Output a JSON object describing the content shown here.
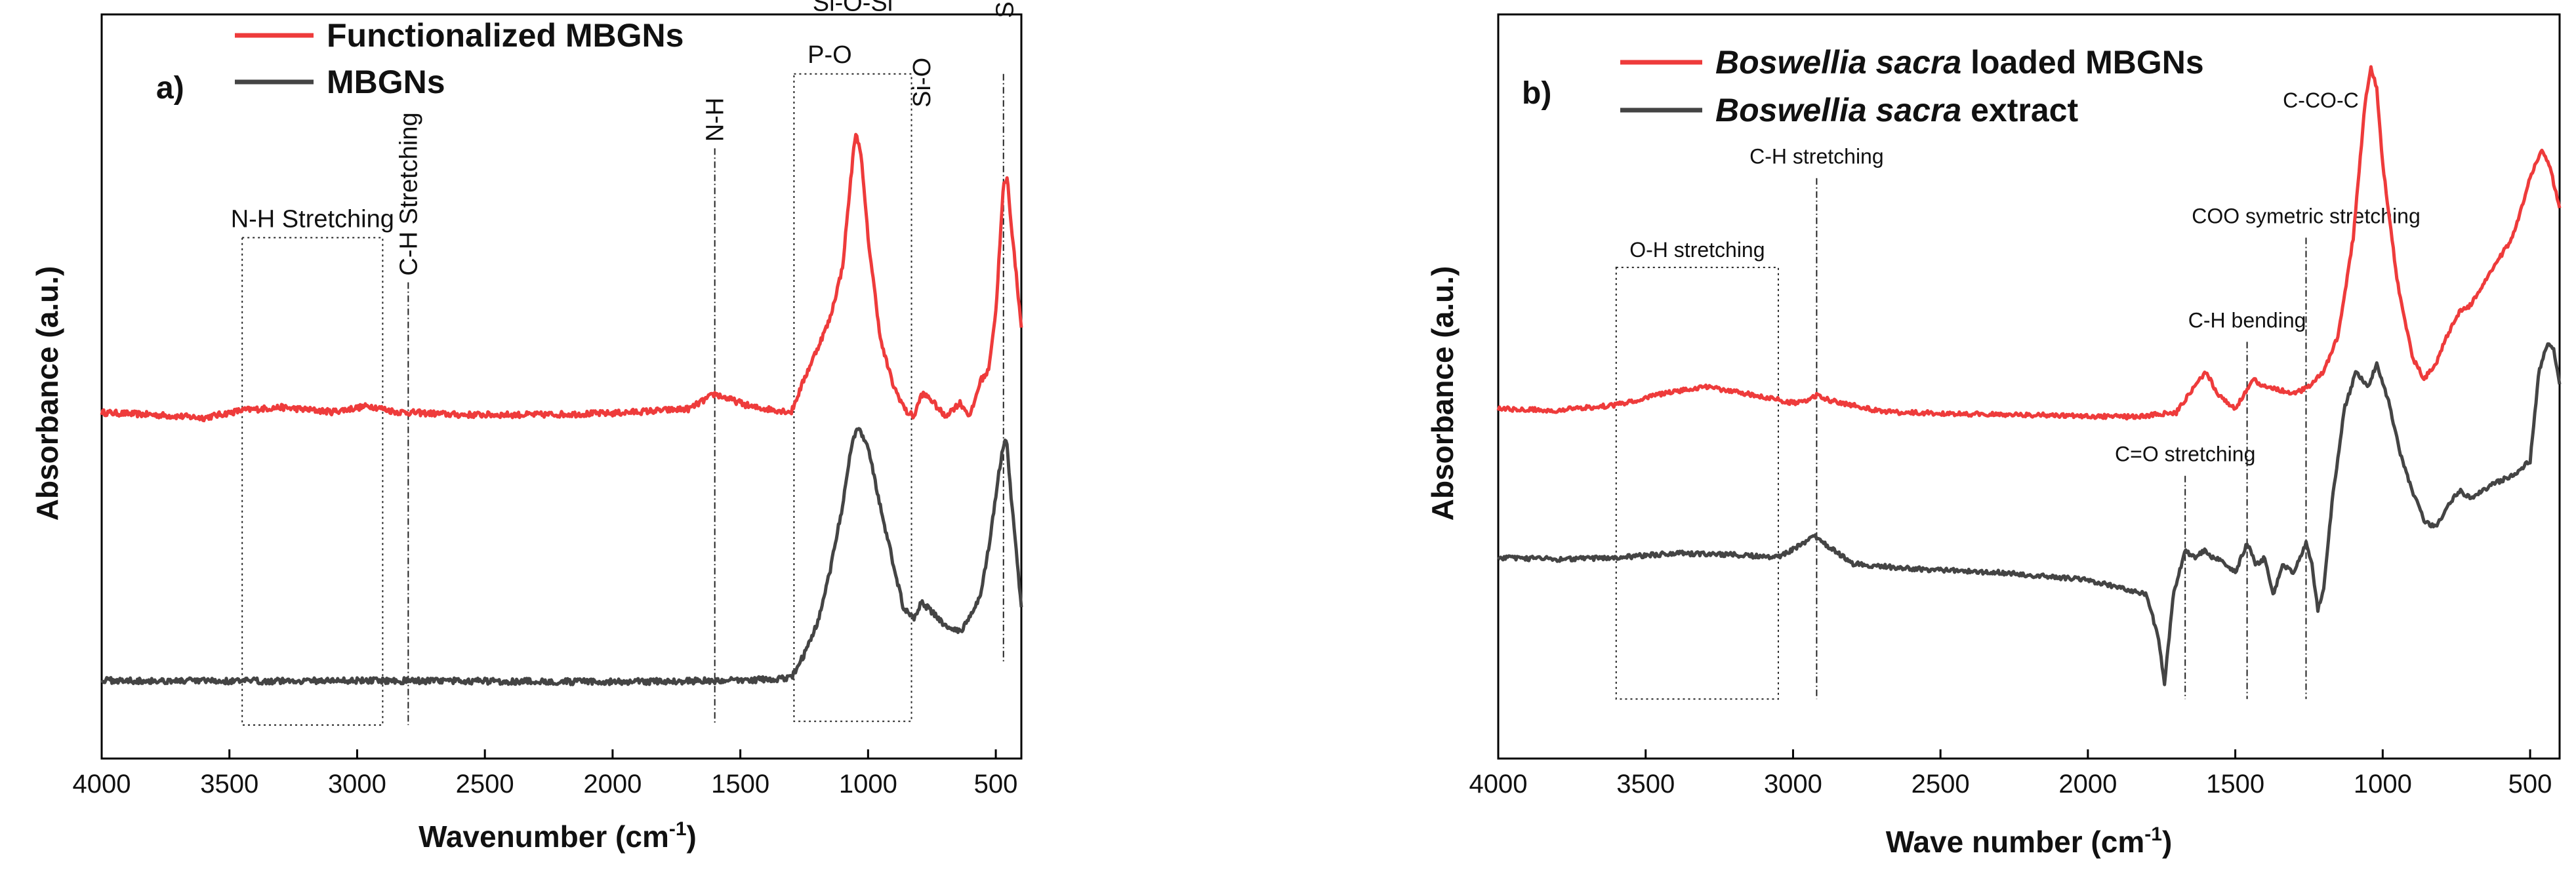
{
  "colors": {
    "red": "#ee3b3b",
    "dark": "#444444",
    "axis": "#000000"
  },
  "chart_data": [
    {
      "type": "line",
      "panel_label": "a)",
      "xlabel": "Wavenumber (cm",
      "xlabel_sup": "-1",
      "xlabel_tail": ")",
      "ylabel": "Absorbance (a.u.)",
      "xlim": [
        4000,
        400
      ],
      "ylim": [
        0,
        1
      ],
      "x_ticks": [
        4000,
        3500,
        3000,
        2500,
        2000,
        1500,
        1000,
        500
      ],
      "x_tick_labels": [
        "4000",
        "3500",
        "3000",
        "2500",
        "2000",
        "1500",
        "1000",
        "500"
      ],
      "series": [
        {
          "name": "Functionalized MBGNs",
          "color": "#ee3b3b",
          "x": [
            4000,
            3800,
            3600,
            3450,
            3300,
            3100,
            2950,
            2900,
            2850,
            2600,
            2300,
            2000,
            1700,
            1600,
            1560,
            1450,
            1300,
            1250,
            1200,
            1150,
            1100,
            1070,
            1050,
            1030,
            1000,
            950,
            900,
            850,
            820,
            790,
            760,
            700,
            640,
            600,
            560,
            530,
            500,
            470,
            455,
            440,
            420,
            400
          ],
          "y": [
            0.465,
            0.462,
            0.458,
            0.468,
            0.472,
            0.466,
            0.474,
            0.47,
            0.466,
            0.462,
            0.462,
            0.464,
            0.47,
            0.49,
            0.485,
            0.472,
            0.466,
            0.51,
            0.55,
            0.59,
            0.66,
            0.77,
            0.84,
            0.82,
            0.7,
            0.56,
            0.5,
            0.466,
            0.46,
            0.49,
            0.485,
            0.46,
            0.478,
            0.46,
            0.508,
            0.52,
            0.6,
            0.77,
            0.78,
            0.72,
            0.65,
            0.58
          ],
          "noise": 0.004
        },
        {
          "name": "MBGNs",
          "color": "#444444",
          "x": [
            4000,
            3500,
            3000,
            2500,
            2000,
            1500,
            1300,
            1250,
            1200,
            1150,
            1100,
            1060,
            1040,
            1000,
            960,
            900,
            860,
            820,
            790,
            760,
            700,
            640,
            600,
            560,
            520,
            490,
            465,
            455,
            440,
            420,
            400
          ],
          "y": [
            0.105,
            0.104,
            0.105,
            0.104,
            0.103,
            0.105,
            0.108,
            0.14,
            0.18,
            0.25,
            0.34,
            0.43,
            0.445,
            0.42,
            0.35,
            0.26,
            0.2,
            0.19,
            0.21,
            0.2,
            0.18,
            0.17,
            0.19,
            0.22,
            0.3,
            0.38,
            0.43,
            0.42,
            0.35,
            0.28,
            0.2
          ],
          "noise": 0.004
        }
      ],
      "annotations": [
        {
          "kind": "box",
          "x1": 3450,
          "x2": 2900,
          "ymin": 0.045,
          "ymax": 0.7,
          "label": "N-H Stretching"
        },
        {
          "kind": "vline",
          "x": 2800,
          "ymin": 0.045,
          "ymax": 0.64,
          "label": "C-H Stretching",
          "rotated": true
        },
        {
          "kind": "vline",
          "x": 1600,
          "ymin": 0.045,
          "ymax": 0.82,
          "label": "N-H",
          "rotated": true
        },
        {
          "kind": "box",
          "x1": 1290,
          "x2": 830,
          "ymin": 0.05,
          "ymax": 0.92,
          "label": ""
        },
        {
          "kind": "vline",
          "x": 470,
          "ymin": 0.13,
          "ymax": 0.92,
          "label": ""
        }
      ],
      "text_labels": [
        {
          "text": "Si-O-Si",
          "x": 1060,
          "y": 1.005
        },
        {
          "text": "P-O",
          "x": 1150,
          "y": 0.935
        },
        {
          "text": "Si-O",
          "x": 790,
          "y": 0.875,
          "rotated": true
        },
        {
          "text": "Si-O",
          "x": 465,
          "y": 0.995,
          "rotated": true
        }
      ]
    },
    {
      "type": "line",
      "panel_label": "b)",
      "xlabel": "Wave number (cm",
      "xlabel_sup": "-1",
      "xlabel_tail": ")",
      "ylabel": "Absorbance (a.u.)",
      "xlim": [
        4000,
        400
      ],
      "ylim": [
        0,
        1
      ],
      "x_ticks": [
        4000,
        3500,
        3000,
        2500,
        2000,
        1500,
        1000,
        500
      ],
      "x_tick_labels": [
        "4000",
        "3500",
        "3000",
        "2500",
        "2000",
        "1500",
        "1000",
        "500"
      ],
      "series": [
        {
          "name": "Boswellia sacra loaded MBGNs",
          "color": "#ee3b3b",
          "x": [
            4000,
            3800,
            3600,
            3450,
            3300,
            3150,
            3000,
            2950,
            2920,
            2880,
            2700,
            2400,
            2100,
            1850,
            1700,
            1620,
            1600,
            1560,
            1500,
            1470,
            1440,
            1400,
            1300,
            1250,
            1200,
            1150,
            1100,
            1060,
            1040,
            1020,
            1000,
            950,
            900,
            860,
            820,
            780,
            740,
            700,
            640,
            560,
            500,
            460,
            430,
            400
          ],
          "y": [
            0.47,
            0.468,
            0.475,
            0.49,
            0.5,
            0.49,
            0.478,
            0.482,
            0.488,
            0.482,
            0.466,
            0.463,
            0.461,
            0.459,
            0.465,
            0.51,
            0.52,
            0.49,
            0.47,
            0.49,
            0.51,
            0.5,
            0.49,
            0.5,
            0.52,
            0.57,
            0.7,
            0.88,
            0.93,
            0.9,
            0.8,
            0.64,
            0.54,
            0.51,
            0.53,
            0.57,
            0.6,
            0.61,
            0.65,
            0.7,
            0.78,
            0.82,
            0.79,
            0.74
          ],
          "noise": 0.003
        },
        {
          "name": "Boswellia sacra extract",
          "color": "#444444",
          "x": [
            4000,
            3800,
            3600,
            3400,
            3200,
            3050,
            2960,
            2930,
            2900,
            2860,
            2800,
            2600,
            2300,
            2000,
            1800,
            1760,
            1740,
            1710,
            1670,
            1640,
            1600,
            1580,
            1540,
            1500,
            1460,
            1430,
            1400,
            1370,
            1340,
            1300,
            1260,
            1240,
            1220,
            1200,
            1170,
            1130,
            1090,
            1050,
            1020,
            980,
            940,
            900,
            860,
            820,
            780,
            740,
            700,
            660,
            620,
            560,
            500,
            470,
            440,
            420,
            400
          ],
          "y": [
            0.27,
            0.268,
            0.27,
            0.276,
            0.274,
            0.27,
            0.29,
            0.3,
            0.29,
            0.28,
            0.262,
            0.255,
            0.25,
            0.24,
            0.22,
            0.16,
            0.1,
            0.22,
            0.28,
            0.27,
            0.28,
            0.27,
            0.265,
            0.25,
            0.29,
            0.26,
            0.27,
            0.22,
            0.26,
            0.25,
            0.29,
            0.26,
            0.2,
            0.23,
            0.35,
            0.47,
            0.52,
            0.5,
            0.53,
            0.48,
            0.41,
            0.36,
            0.32,
            0.31,
            0.34,
            0.36,
            0.35,
            0.36,
            0.37,
            0.38,
            0.4,
            0.52,
            0.56,
            0.55,
            0.5
          ],
          "noise": 0.003
        }
      ],
      "annotations": [
        {
          "kind": "box",
          "x1": 3600,
          "x2": 3050,
          "ymin": 0.08,
          "ymax": 0.66,
          "label": "O-H stretching"
        },
        {
          "kind": "vline",
          "x": 2920,
          "ymin": 0.08,
          "ymax": 0.78,
          "label": "C-H stretching"
        },
        {
          "kind": "vline",
          "x": 1670,
          "ymin": 0.08,
          "ymax": 0.38,
          "label": "C=O stretching"
        },
        {
          "kind": "vline",
          "x": 1460,
          "ymin": 0.08,
          "ymax": 0.56,
          "label": "C-H bending"
        },
        {
          "kind": "vline",
          "x": 1260,
          "ymin": 0.08,
          "ymax": 0.7,
          "label": "COO symetric stretching"
        }
      ],
      "text_labels": [
        {
          "text": "C-CO-C",
          "x": 1210,
          "y": 0.875
        }
      ]
    }
  ],
  "legend_a": [
    {
      "label": "Functionalized MBGNs"
    },
    {
      "label": "MBGNs"
    }
  ],
  "legend_b": [
    {
      "italic": "Boswellia sacra",
      "rest": " loaded MBGNs"
    },
    {
      "italic": "Boswellia sacra",
      "rest": " extract"
    }
  ]
}
